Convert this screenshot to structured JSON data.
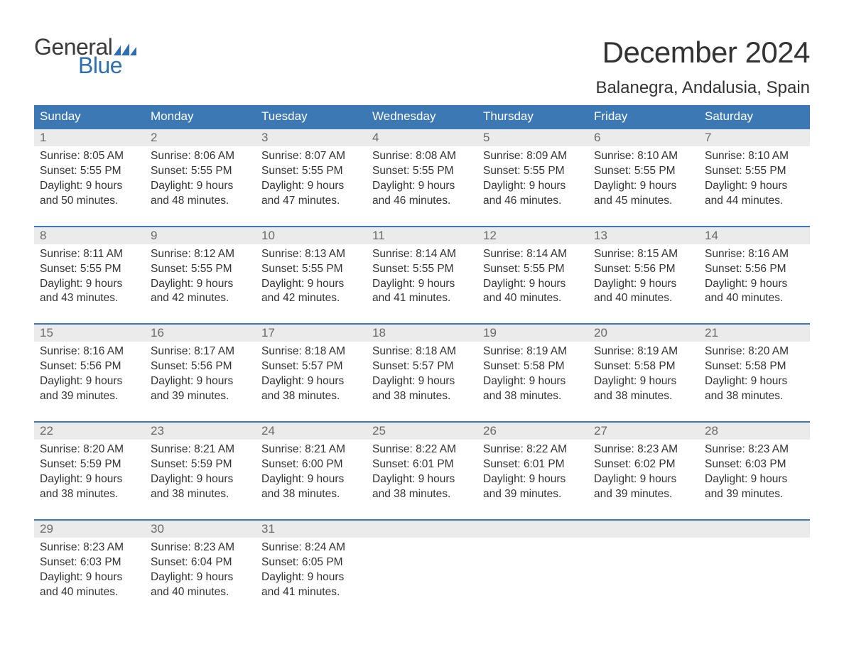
{
  "brand": {
    "word1": "General",
    "word2": "Blue",
    "word1_color": "#3a3a3a",
    "word2_color": "#2f6fae"
  },
  "title": "December 2024",
  "location": "Balanegra, Andalusia, Spain",
  "colors": {
    "header_bg": "#3c78b4",
    "header_text": "#ffffff",
    "daynum_bg": "#ebebeb",
    "daynum_text": "#6a6a6a",
    "body_text": "#333333",
    "week_border": "#3c78b4",
    "page_bg": "#ffffff"
  },
  "weekdays": [
    "Sunday",
    "Monday",
    "Tuesday",
    "Wednesday",
    "Thursday",
    "Friday",
    "Saturday"
  ],
  "weeks": [
    [
      {
        "n": "1",
        "sunrise": "Sunrise: 8:05 AM",
        "sunset": "Sunset: 5:55 PM",
        "d1": "Daylight: 9 hours",
        "d2": "and 50 minutes."
      },
      {
        "n": "2",
        "sunrise": "Sunrise: 8:06 AM",
        "sunset": "Sunset: 5:55 PM",
        "d1": "Daylight: 9 hours",
        "d2": "and 48 minutes."
      },
      {
        "n": "3",
        "sunrise": "Sunrise: 8:07 AM",
        "sunset": "Sunset: 5:55 PM",
        "d1": "Daylight: 9 hours",
        "d2": "and 47 minutes."
      },
      {
        "n": "4",
        "sunrise": "Sunrise: 8:08 AM",
        "sunset": "Sunset: 5:55 PM",
        "d1": "Daylight: 9 hours",
        "d2": "and 46 minutes."
      },
      {
        "n": "5",
        "sunrise": "Sunrise: 8:09 AM",
        "sunset": "Sunset: 5:55 PM",
        "d1": "Daylight: 9 hours",
        "d2": "and 46 minutes."
      },
      {
        "n": "6",
        "sunrise": "Sunrise: 8:10 AM",
        "sunset": "Sunset: 5:55 PM",
        "d1": "Daylight: 9 hours",
        "d2": "and 45 minutes."
      },
      {
        "n": "7",
        "sunrise": "Sunrise: 8:10 AM",
        "sunset": "Sunset: 5:55 PM",
        "d1": "Daylight: 9 hours",
        "d2": "and 44 minutes."
      }
    ],
    [
      {
        "n": "8",
        "sunrise": "Sunrise: 8:11 AM",
        "sunset": "Sunset: 5:55 PM",
        "d1": "Daylight: 9 hours",
        "d2": "and 43 minutes."
      },
      {
        "n": "9",
        "sunrise": "Sunrise: 8:12 AM",
        "sunset": "Sunset: 5:55 PM",
        "d1": "Daylight: 9 hours",
        "d2": "and 42 minutes."
      },
      {
        "n": "10",
        "sunrise": "Sunrise: 8:13 AM",
        "sunset": "Sunset: 5:55 PM",
        "d1": "Daylight: 9 hours",
        "d2": "and 42 minutes."
      },
      {
        "n": "11",
        "sunrise": "Sunrise: 8:14 AM",
        "sunset": "Sunset: 5:55 PM",
        "d1": "Daylight: 9 hours",
        "d2": "and 41 minutes."
      },
      {
        "n": "12",
        "sunrise": "Sunrise: 8:14 AM",
        "sunset": "Sunset: 5:55 PM",
        "d1": "Daylight: 9 hours",
        "d2": "and 40 minutes."
      },
      {
        "n": "13",
        "sunrise": "Sunrise: 8:15 AM",
        "sunset": "Sunset: 5:56 PM",
        "d1": "Daylight: 9 hours",
        "d2": "and 40 minutes."
      },
      {
        "n": "14",
        "sunrise": "Sunrise: 8:16 AM",
        "sunset": "Sunset: 5:56 PM",
        "d1": "Daylight: 9 hours",
        "d2": "and 40 minutes."
      }
    ],
    [
      {
        "n": "15",
        "sunrise": "Sunrise: 8:16 AM",
        "sunset": "Sunset: 5:56 PM",
        "d1": "Daylight: 9 hours",
        "d2": "and 39 minutes."
      },
      {
        "n": "16",
        "sunrise": "Sunrise: 8:17 AM",
        "sunset": "Sunset: 5:56 PM",
        "d1": "Daylight: 9 hours",
        "d2": "and 39 minutes."
      },
      {
        "n": "17",
        "sunrise": "Sunrise: 8:18 AM",
        "sunset": "Sunset: 5:57 PM",
        "d1": "Daylight: 9 hours",
        "d2": "and 38 minutes."
      },
      {
        "n": "18",
        "sunrise": "Sunrise: 8:18 AM",
        "sunset": "Sunset: 5:57 PM",
        "d1": "Daylight: 9 hours",
        "d2": "and 38 minutes."
      },
      {
        "n": "19",
        "sunrise": "Sunrise: 8:19 AM",
        "sunset": "Sunset: 5:58 PM",
        "d1": "Daylight: 9 hours",
        "d2": "and 38 minutes."
      },
      {
        "n": "20",
        "sunrise": "Sunrise: 8:19 AM",
        "sunset": "Sunset: 5:58 PM",
        "d1": "Daylight: 9 hours",
        "d2": "and 38 minutes."
      },
      {
        "n": "21",
        "sunrise": "Sunrise: 8:20 AM",
        "sunset": "Sunset: 5:58 PM",
        "d1": "Daylight: 9 hours",
        "d2": "and 38 minutes."
      }
    ],
    [
      {
        "n": "22",
        "sunrise": "Sunrise: 8:20 AM",
        "sunset": "Sunset: 5:59 PM",
        "d1": "Daylight: 9 hours",
        "d2": "and 38 minutes."
      },
      {
        "n": "23",
        "sunrise": "Sunrise: 8:21 AM",
        "sunset": "Sunset: 5:59 PM",
        "d1": "Daylight: 9 hours",
        "d2": "and 38 minutes."
      },
      {
        "n": "24",
        "sunrise": "Sunrise: 8:21 AM",
        "sunset": "Sunset: 6:00 PM",
        "d1": "Daylight: 9 hours",
        "d2": "and 38 minutes."
      },
      {
        "n": "25",
        "sunrise": "Sunrise: 8:22 AM",
        "sunset": "Sunset: 6:01 PM",
        "d1": "Daylight: 9 hours",
        "d2": "and 38 minutes."
      },
      {
        "n": "26",
        "sunrise": "Sunrise: 8:22 AM",
        "sunset": "Sunset: 6:01 PM",
        "d1": "Daylight: 9 hours",
        "d2": "and 39 minutes."
      },
      {
        "n": "27",
        "sunrise": "Sunrise: 8:23 AM",
        "sunset": "Sunset: 6:02 PM",
        "d1": "Daylight: 9 hours",
        "d2": "and 39 minutes."
      },
      {
        "n": "28",
        "sunrise": "Sunrise: 8:23 AM",
        "sunset": "Sunset: 6:03 PM",
        "d1": "Daylight: 9 hours",
        "d2": "and 39 minutes."
      }
    ],
    [
      {
        "n": "29",
        "sunrise": "Sunrise: 8:23 AM",
        "sunset": "Sunset: 6:03 PM",
        "d1": "Daylight: 9 hours",
        "d2": "and 40 minutes."
      },
      {
        "n": "30",
        "sunrise": "Sunrise: 8:23 AM",
        "sunset": "Sunset: 6:04 PM",
        "d1": "Daylight: 9 hours",
        "d2": "and 40 minutes."
      },
      {
        "n": "31",
        "sunrise": "Sunrise: 8:24 AM",
        "sunset": "Sunset: 6:05 PM",
        "d1": "Daylight: 9 hours",
        "d2": "and 41 minutes."
      },
      {
        "empty": true
      },
      {
        "empty": true
      },
      {
        "empty": true
      },
      {
        "empty": true
      }
    ]
  ]
}
